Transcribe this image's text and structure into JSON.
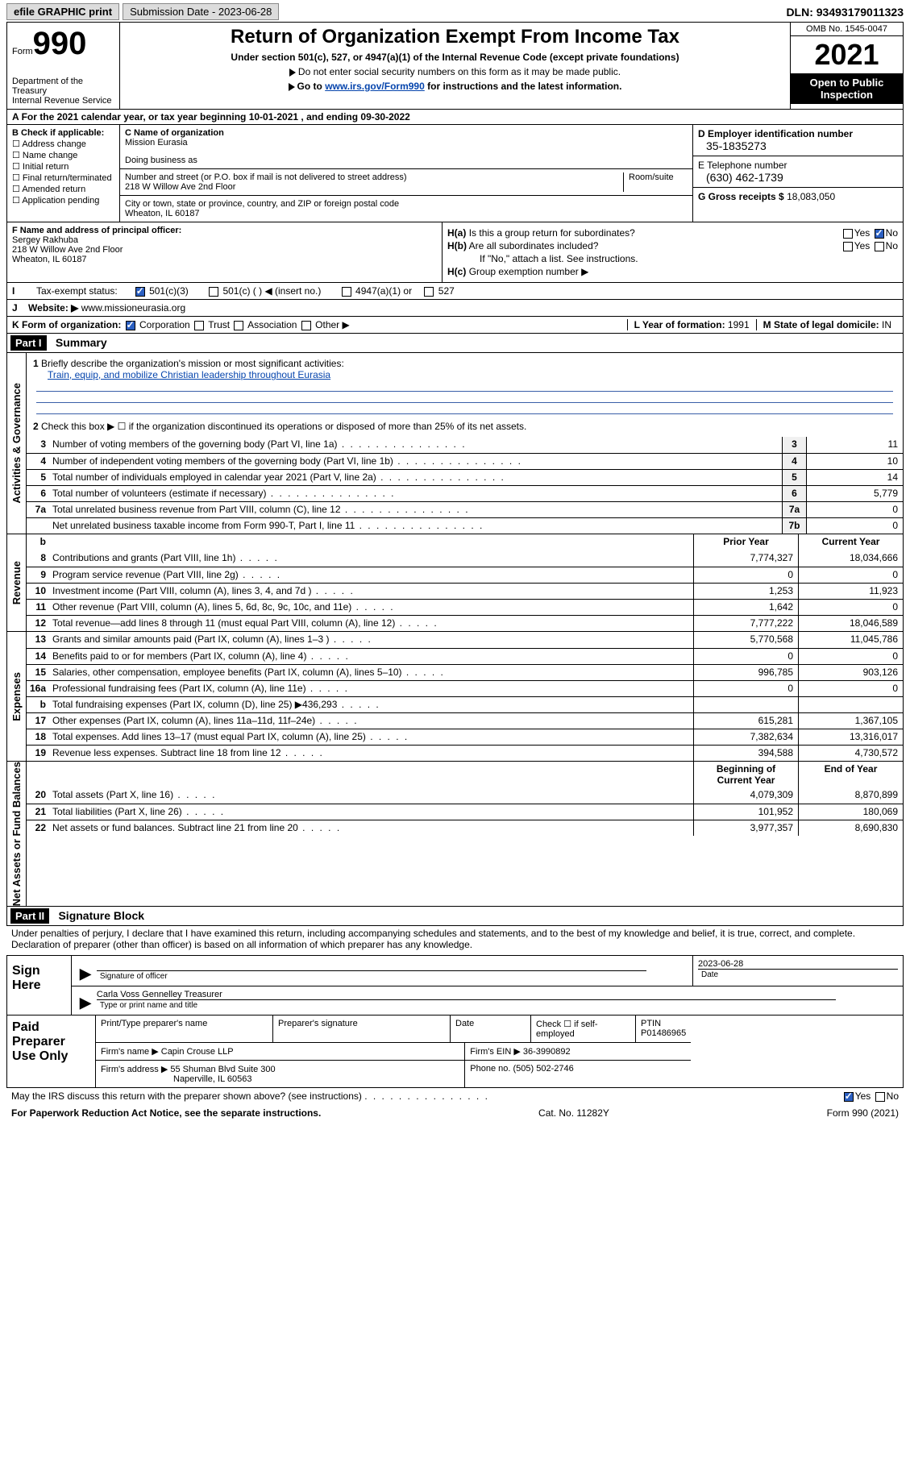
{
  "topbar": {
    "efile": "efile GRAPHIC print",
    "submission": "Submission Date - 2023-06-28",
    "dln": "DLN: 93493179011323"
  },
  "header": {
    "form_label": "Form",
    "form_no": "990",
    "dept": "Department of the Treasury",
    "irs": "Internal Revenue Service",
    "title": "Return of Organization Exempt From Income Tax",
    "sub": "Under section 501(c), 527, or 4947(a)(1) of the Internal Revenue Code (except private foundations)",
    "note1": "Do not enter social security numbers on this form as it may be made public.",
    "note2_pre": "Go to ",
    "note2_link": "www.irs.gov/Form990",
    "note2_post": " for instructions and the latest information.",
    "omb": "OMB No. 1545-0047",
    "year": "2021",
    "open": "Open to Public Inspection"
  },
  "A": {
    "line": "For the 2021 calendar year, or tax year beginning 10-01-2021   , and ending 09-30-2022",
    "label": "A"
  },
  "B": {
    "label": "B Check if applicable:",
    "opts": [
      "Address change",
      "Name change",
      "Initial return",
      "Final return/terminated",
      "Amended return",
      "Application pending"
    ]
  },
  "C": {
    "name_label": "C Name of organization",
    "name": "Mission Eurasia",
    "dba_label": "Doing business as",
    "addr_label": "Number and street (or P.O. box if mail is not delivered to street address)",
    "room_label": "Room/suite",
    "addr": "218 W Willow Ave 2nd Floor",
    "city_label": "City or town, state or province, country, and ZIP or foreign postal code",
    "city": "Wheaton, IL  60187"
  },
  "D": {
    "label": "D Employer identification number",
    "val": "35-1835273"
  },
  "E": {
    "label": "E Telephone number",
    "val": "(630) 462-1739"
  },
  "G": {
    "label": "G Gross receipts $",
    "val": "18,083,050"
  },
  "F": {
    "label": "F Name and address of principal officer:",
    "name": "Sergey Rakhuba",
    "addr": "218 W Willow Ave 2nd Floor",
    "city": "Wheaton, IL  60187"
  },
  "H": {
    "a": "Is this a group return for subordinates?",
    "b": "Are all subordinates included?",
    "bnote": "If \"No,\" attach a list. See instructions.",
    "c": "Group exemption number ▶",
    "ha": "H(a)",
    "hb": "H(b)",
    "hc": "H(c)",
    "yes": "Yes",
    "no": "No"
  },
  "I": {
    "label": "Tax-exempt status:",
    "c3": "501(c)(3)",
    "c": "501(c) (   ) ◀ (insert no.)",
    "a1": "4947(a)(1) or",
    "s527": "527",
    "I": "I"
  },
  "J": {
    "label": "Website: ▶",
    "val": "www.missioneurasia.org",
    "J": "J"
  },
  "K": {
    "label": "K Form of organization:",
    "opts": [
      "Corporation",
      "Trust",
      "Association",
      "Other ▶"
    ]
  },
  "L": {
    "label": "L Year of formation:",
    "val": "1991"
  },
  "M": {
    "label": "M State of legal domicile:",
    "val": "IN"
  },
  "part1": {
    "bar": "Part I",
    "title": "Summary"
  },
  "summary": {
    "q1": "Briefly describe the organization's mission or most significant activities:",
    "mission": "Train, equip, and mobilize Christian leadership throughout Eurasia",
    "q2": "Check this box ▶ ☐  if the organization discontinued its operations or disposed of more than 25% of its net assets.",
    "rows": [
      {
        "n": "3",
        "d": "Number of voting members of the governing body (Part VI, line 1a)",
        "b": "3",
        "v": "11"
      },
      {
        "n": "4",
        "d": "Number of independent voting members of the governing body (Part VI, line 1b)",
        "b": "4",
        "v": "10"
      },
      {
        "n": "5",
        "d": "Total number of individuals employed in calendar year 2021 (Part V, line 2a)",
        "b": "5",
        "v": "14"
      },
      {
        "n": "6",
        "d": "Total number of volunteers (estimate if necessary)",
        "b": "6",
        "v": "5,779"
      },
      {
        "n": "7a",
        "d": "Total unrelated business revenue from Part VIII, column (C), line 12",
        "b": "7a",
        "v": "0"
      },
      {
        "n": "",
        "d": "Net unrelated business taxable income from Form 990-T, Part I, line 11",
        "b": "7b",
        "v": "0"
      }
    ],
    "hdr_prior": "Prior Year",
    "hdr_curr": "Current Year",
    "rev": [
      {
        "n": "8",
        "d": "Contributions and grants (Part VIII, line 1h)",
        "p": "7,774,327",
        "c": "18,034,666"
      },
      {
        "n": "9",
        "d": "Program service revenue (Part VIII, line 2g)",
        "p": "0",
        "c": "0"
      },
      {
        "n": "10",
        "d": "Investment income (Part VIII, column (A), lines 3, 4, and 7d )",
        "p": "1,253",
        "c": "11,923"
      },
      {
        "n": "11",
        "d": "Other revenue (Part VIII, column (A), lines 5, 6d, 8c, 9c, 10c, and 11e)",
        "p": "1,642",
        "c": "0"
      },
      {
        "n": "12",
        "d": "Total revenue—add lines 8 through 11 (must equal Part VIII, column (A), line 12)",
        "p": "7,777,222",
        "c": "18,046,589"
      }
    ],
    "exp": [
      {
        "n": "13",
        "d": "Grants and similar amounts paid (Part IX, column (A), lines 1–3 )",
        "p": "5,770,568",
        "c": "11,045,786"
      },
      {
        "n": "14",
        "d": "Benefits paid to or for members (Part IX, column (A), line 4)",
        "p": "0",
        "c": "0"
      },
      {
        "n": "15",
        "d": "Salaries, other compensation, employee benefits (Part IX, column (A), lines 5–10)",
        "p": "996,785",
        "c": "903,126"
      },
      {
        "n": "16a",
        "d": "Professional fundraising fees (Part IX, column (A), line 11e)",
        "p": "0",
        "c": "0"
      },
      {
        "n": "b",
        "d": "Total fundraising expenses (Part IX, column (D), line 25) ▶436,293",
        "p": "",
        "c": "",
        "grey": true
      },
      {
        "n": "17",
        "d": "Other expenses (Part IX, column (A), lines 11a–11d, 11f–24e)",
        "p": "615,281",
        "c": "1,367,105"
      },
      {
        "n": "18",
        "d": "Total expenses. Add lines 13–17 (must equal Part IX, column (A), line 25)",
        "p": "7,382,634",
        "c": "13,316,017"
      },
      {
        "n": "19",
        "d": "Revenue less expenses. Subtract line 18 from line 12",
        "p": "394,588",
        "c": "4,730,572"
      }
    ],
    "hdr_beg": "Beginning of Current Year",
    "hdr_end": "End of Year",
    "net": [
      {
        "n": "20",
        "d": "Total assets (Part X, line 16)",
        "p": "4,079,309",
        "c": "8,870,899"
      },
      {
        "n": "21",
        "d": "Total liabilities (Part X, line 26)",
        "p": "101,952",
        "c": "180,069"
      },
      {
        "n": "22",
        "d": "Net assets or fund balances. Subtract line 21 from line 20",
        "p": "3,977,357",
        "c": "8,690,830"
      }
    ]
  },
  "labels": {
    "gov": "Activities & Governance",
    "rev": "Revenue",
    "exp": "Expenses",
    "net": "Net Assets or Fund Balances"
  },
  "part2": {
    "bar": "Part II",
    "title": "Signature Block"
  },
  "sig": {
    "penalty": "Under penalties of perjury, I declare that I have examined this return, including accompanying schedules and statements, and to the best of my knowledge and belief, it is true, correct, and complete. Declaration of preparer (other than officer) is based on all information of which preparer has any knowledge.",
    "sign_here": "Sign Here",
    "sig_officer": "Signature of officer",
    "date_label": "Date",
    "date": "2023-06-28",
    "name_title": "Carla Voss Gennelley Treasurer",
    "type_name": "Type or print name and title"
  },
  "prep": {
    "label": "Paid Preparer Use Only",
    "print_name": "Print/Type preparer's name",
    "prep_sig": "Preparer's signature",
    "date": "Date",
    "check": "Check ☐ if self-employed",
    "ptin_label": "PTIN",
    "ptin": "P01486965",
    "firm_name_label": "Firm's name   ▶",
    "firm_name": "Capin Crouse LLP",
    "firm_ein_label": "Firm's EIN ▶",
    "firm_ein": "36-3990892",
    "firm_addr_label": "Firm's address ▶",
    "firm_addr": "55 Shuman Blvd Suite 300",
    "firm_city": "Naperville, IL  60563",
    "phone_label": "Phone no.",
    "phone": "(505) 502-2746"
  },
  "footer": {
    "discuss": "May the IRS discuss this return with the preparer shown above? (see instructions)",
    "paperwork": "For Paperwork Reduction Act Notice, see the separate instructions.",
    "cat": "Cat. No. 11282Y",
    "form": "Form 990 (2021)",
    "yes": "Yes",
    "no": "No"
  }
}
